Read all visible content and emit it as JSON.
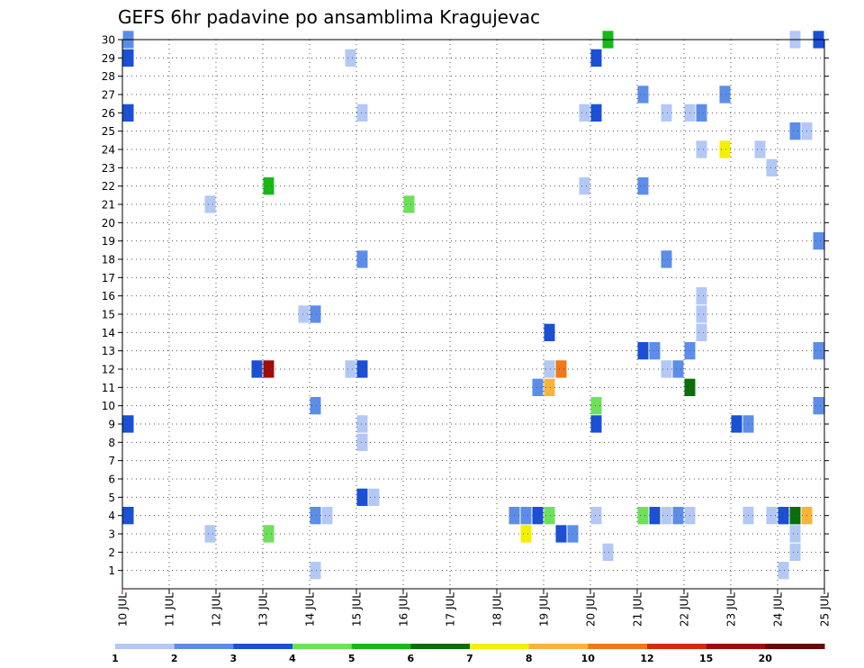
{
  "chart_data": {
    "type": "heatmap",
    "title": "GEFS 6hr padavine po ansamblima Kragujevac",
    "xlabel": "",
    "ylabel": "",
    "x_range": [
      10,
      25
    ],
    "x_ticks": [
      "10 JUL",
      "11 JUL",
      "12 JUL",
      "13 JUL",
      "14 JUL",
      "15 JUL",
      "16 JUL",
      "17 JUL",
      "18 JUL",
      "19 JUL",
      "20 JUL",
      "21 JUL",
      "22 JUL",
      "23 JUL",
      "24 JUL",
      "25 JUL"
    ],
    "y_range": [
      0,
      30
    ],
    "y_ticks": [
      1,
      2,
      3,
      4,
      5,
      6,
      7,
      8,
      9,
      10,
      11,
      12,
      13,
      14,
      15,
      16,
      17,
      18,
      19,
      20,
      21,
      22,
      23,
      24,
      25,
      26,
      27,
      28,
      29,
      30
    ],
    "grid": true,
    "cell_days": 0.25,
    "colorbar": {
      "levels": [
        "1",
        "2",
        "3",
        "4",
        "5",
        "6",
        "7",
        "8",
        "10",
        "12",
        "15",
        "20"
      ],
      "colors": [
        "#b3c8f5",
        "#5c8de8",
        "#1a4fd6",
        "#6ee05a",
        "#18b818",
        "#0a6e0a",
        "#f5f000",
        "#f8b43a",
        "#f07818",
        "#d82a0a",
        "#a00a0a",
        "#6a0606"
      ]
    },
    "cells": [
      [
        10.0,
        30,
        1
      ],
      [
        10.0,
        29,
        2
      ],
      [
        10.0,
        26,
        2
      ],
      [
        10.0,
        9,
        2
      ],
      [
        10.0,
        4,
        2
      ],
      [
        11.75,
        3,
        0
      ],
      [
        11.75,
        21,
        0
      ],
      [
        12.75,
        12,
        2
      ],
      [
        13.0,
        12,
        10
      ],
      [
        13.0,
        22,
        4
      ],
      [
        13.0,
        3,
        3
      ],
      [
        13.75,
        15,
        0
      ],
      [
        14.0,
        15,
        1
      ],
      [
        14.0,
        10,
        1
      ],
      [
        14.0,
        4,
        1
      ],
      [
        14.25,
        4,
        0
      ],
      [
        14.0,
        1,
        0
      ],
      [
        14.75,
        29,
        0
      ],
      [
        15.0,
        26,
        0
      ],
      [
        15.0,
        18,
        1
      ],
      [
        14.75,
        12,
        0
      ],
      [
        15.0,
        12,
        2
      ],
      [
        15.0,
        9,
        0
      ],
      [
        15.0,
        8,
        0
      ],
      [
        15.0,
        5,
        2
      ],
      [
        15.25,
        5,
        0
      ],
      [
        16.0,
        21,
        3
      ],
      [
        18.25,
        4,
        1
      ],
      [
        18.5,
        4,
        1
      ],
      [
        18.75,
        4,
        2
      ],
      [
        19.0,
        4,
        3
      ],
      [
        18.5,
        3,
        6
      ],
      [
        18.75,
        11,
        1
      ],
      [
        19.0,
        11,
        7
      ],
      [
        19.0,
        12,
        0
      ],
      [
        19.25,
        12,
        8
      ],
      [
        19.0,
        14,
        2
      ],
      [
        19.25,
        3,
        2
      ],
      [
        19.5,
        3,
        1
      ],
      [
        19.75,
        26,
        0
      ],
      [
        20.0,
        26,
        2
      ],
      [
        20.0,
        29,
        2
      ],
      [
        20.25,
        30,
        4
      ],
      [
        19.75,
        22,
        0
      ],
      [
        20.0,
        10,
        3
      ],
      [
        20.0,
        9,
        2
      ],
      [
        20.0,
        4,
        0
      ],
      [
        20.25,
        2,
        0
      ],
      [
        21.0,
        27,
        1
      ],
      [
        21.0,
        22,
        1
      ],
      [
        21.0,
        13,
        2
      ],
      [
        21.25,
        13,
        1
      ],
      [
        21.0,
        4,
        3
      ],
      [
        21.25,
        4,
        2
      ],
      [
        21.5,
        4,
        0
      ],
      [
        21.75,
        4,
        1
      ],
      [
        22.0,
        4,
        0
      ],
      [
        21.5,
        26,
        0
      ],
      [
        21.5,
        18,
        1
      ],
      [
        21.5,
        12,
        0
      ],
      [
        21.75,
        12,
        1
      ],
      [
        22.0,
        11,
        5
      ],
      [
        22.0,
        13,
        1
      ],
      [
        22.0,
        26,
        0
      ],
      [
        22.25,
        26,
        1
      ],
      [
        22.25,
        24,
        0
      ],
      [
        22.25,
        16,
        0
      ],
      [
        22.25,
        15,
        0
      ],
      [
        22.25,
        14,
        0
      ],
      [
        22.75,
        27,
        1
      ],
      [
        22.75,
        24,
        6
      ],
      [
        23.0,
        9,
        2
      ],
      [
        23.25,
        9,
        1
      ],
      [
        23.25,
        4,
        0
      ],
      [
        23.5,
        24,
        0
      ],
      [
        23.75,
        23,
        0
      ],
      [
        23.75,
        4,
        0
      ],
      [
        24.0,
        4,
        2
      ],
      [
        24.25,
        4,
        5
      ],
      [
        24.5,
        4,
        7
      ],
      [
        24.0,
        1,
        0
      ],
      [
        24.25,
        3,
        0
      ],
      [
        24.25,
        2,
        0
      ],
      [
        24.25,
        30,
        0
      ],
      [
        24.25,
        25,
        1
      ],
      [
        24.5,
        25,
        0
      ],
      [
        24.25,
        4,
        5
      ],
      [
        24.75,
        30,
        2
      ],
      [
        24.75,
        19,
        1
      ],
      [
        24.75,
        13,
        1
      ],
      [
        24.75,
        10,
        1
      ]
    ]
  }
}
